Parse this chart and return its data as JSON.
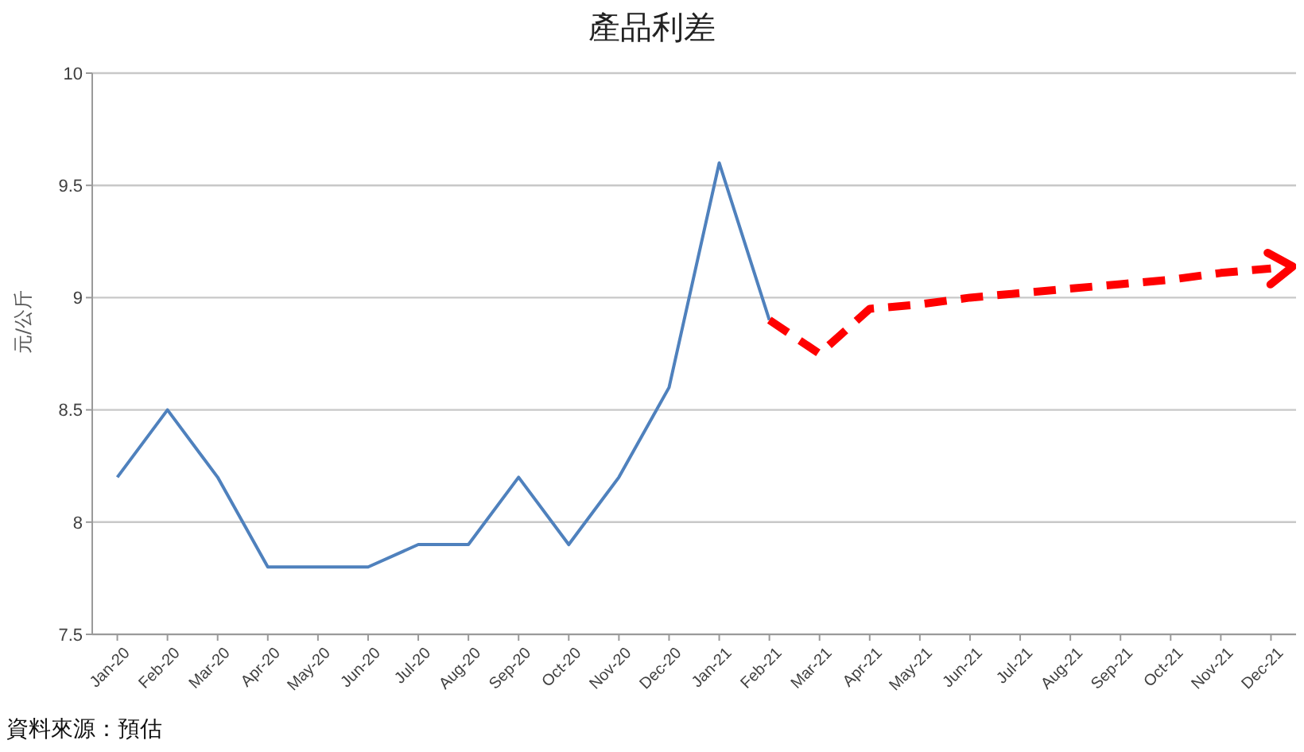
{
  "chart_data": {
    "type": "line",
    "title": "產品利差",
    "ylabel": "元/公斤",
    "annotations": [
      "資料來源：預估"
    ],
    "categories": [
      "Jan-20",
      "Feb-20",
      "Mar-20",
      "Apr-20",
      "May-20",
      "Jun-20",
      "Jul-20",
      "Aug-20",
      "Sep-20",
      "Oct-20",
      "Nov-20",
      "Dec-20",
      "Jan-21",
      "Feb-21",
      "Mar-21",
      "Apr-21",
      "May-21",
      "Jun-21",
      "Jul-21",
      "Aug-21",
      "Sep-21",
      "Oct-21",
      "Nov-21",
      "Dec-21"
    ],
    "series": [
      {
        "color": "#4f81bd",
        "line_style": "solid",
        "values": [
          8.2,
          8.5,
          8.2,
          7.8,
          7.8,
          7.8,
          7.9,
          7.9,
          8.2,
          7.9,
          8.2,
          8.6,
          9.6,
          8.9,
          null,
          null,
          null,
          null,
          null,
          null,
          null,
          null,
          null,
          null
        ]
      },
      {
        "color": "#ff0000",
        "line_style": "dashed",
        "values": [
          null,
          null,
          null,
          null,
          null,
          null,
          null,
          null,
          null,
          null,
          null,
          null,
          null,
          8.9,
          8.75,
          8.95,
          8.97,
          9.0,
          9.02,
          9.04,
          9.06,
          9.08,
          9.11,
          9.13
        ]
      }
    ],
    "ylim": [
      7.5,
      10
    ],
    "yticks": [
      7.5,
      8,
      8.5,
      9,
      9.5,
      10
    ],
    "grid": "y"
  }
}
